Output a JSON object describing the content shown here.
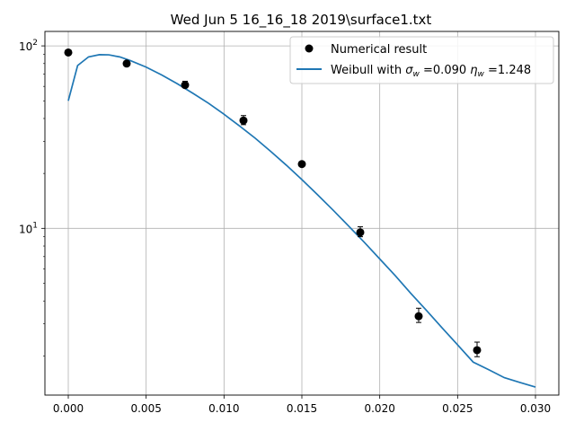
{
  "chart_data": {
    "type": "scatter",
    "title": "Wed Jun  5 16_16_18 2019\\surface1.txt",
    "xlabel": "",
    "ylabel": "",
    "xlim": [
      -0.0015,
      0.0315
    ],
    "ylim": [
      1.22,
      120
    ],
    "yscale": "log",
    "grid": true,
    "legend_position": "top-right",
    "x_ticks": [
      {
        "value": 0.0,
        "label": "0.000"
      },
      {
        "value": 0.005,
        "label": "0.005"
      },
      {
        "value": 0.01,
        "label": "0.010"
      },
      {
        "value": 0.015,
        "label": "0.015"
      },
      {
        "value": 0.02,
        "label": "0.020"
      },
      {
        "value": 0.025,
        "label": "0.025"
      },
      {
        "value": 0.03,
        "label": "0.030"
      }
    ],
    "y_ticks": [
      {
        "value": 10,
        "base": "10",
        "exp": "1"
      },
      {
        "value": 100,
        "base": "10",
        "exp": "2"
      }
    ],
    "series": [
      {
        "name": "Numerical result",
        "kind": "points",
        "color": "#000000",
        "points": [
          {
            "x": 0.0,
            "y": 92.0
          },
          {
            "x": 0.00375,
            "y": 80.0
          },
          {
            "x": 0.0075,
            "y": 61.0
          },
          {
            "x": 0.01125,
            "y": 39.0
          },
          {
            "x": 0.015,
            "y": 22.5
          },
          {
            "x": 0.01875,
            "y": 9.5
          },
          {
            "x": 0.0225,
            "y": 3.3
          },
          {
            "x": 0.02625,
            "y": 2.15
          }
        ],
        "error_marks": [
          {
            "x": 0.0075,
            "lo": 59.0,
            "hi": 64.0
          },
          {
            "x": 0.01125,
            "lo": 37.0,
            "hi": 41.5
          },
          {
            "x": 0.01875,
            "lo": 9.0,
            "hi": 10.2
          },
          {
            "x": 0.0225,
            "lo": 3.05,
            "hi": 3.65
          },
          {
            "x": 0.02625,
            "lo": 1.98,
            "hi": 2.38
          }
        ]
      },
      {
        "name": "Weibull with σ_w =0.090 η_w =1.248",
        "kind": "line",
        "color": "#1f77b4",
        "x": [
          0.0,
          0.0006,
          0.0013,
          0.002,
          0.0026,
          0.0033,
          0.004,
          0.005,
          0.006,
          0.007,
          0.008,
          0.009,
          0.01,
          0.011,
          0.012,
          0.013,
          0.014,
          0.015,
          0.016,
          0.017,
          0.018,
          0.019,
          0.02,
          0.021,
          0.022,
          0.023,
          0.024,
          0.025,
          0.026,
          0.027,
          0.028,
          0.029,
          0.03
        ],
        "y": [
          50.0,
          78.0,
          87.0,
          89.5,
          89.3,
          87.0,
          83.0,
          76.5,
          69.3,
          62.0,
          55.0,
          48.5,
          42.2,
          36.4,
          31.2,
          26.4,
          22.2,
          18.5,
          15.3,
          12.6,
          10.3,
          8.4,
          6.8,
          5.5,
          4.4,
          3.55,
          2.85,
          2.3,
          1.85,
          1.68,
          1.52,
          1.43,
          1.35
        ]
      }
    ],
    "legend": {
      "entries": [
        {
          "label_prefix": "Numerical result",
          "math": []
        },
        {
          "label_prefix": "Weibull with ",
          "math": [
            {
              "sym": "σ",
              "sub": "w",
              "value": " =0.090 "
            },
            {
              "sym": "η",
              "sub": "w",
              "value": " =1.248"
            }
          ]
        }
      ]
    }
  }
}
